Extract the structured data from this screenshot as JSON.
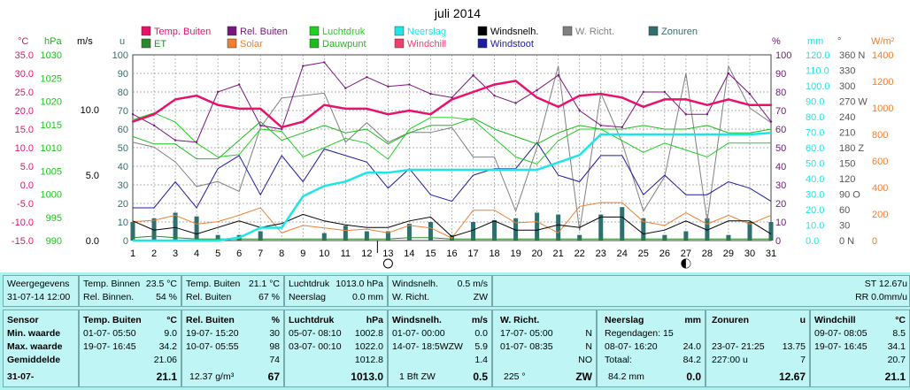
{
  "title": "juli 2014",
  "axis_units": {
    "temp": "°C",
    "press": "hPa",
    "wind": "m/s",
    "u": "u",
    "pct": "%",
    "mm": "mm",
    "deg": "°",
    "wm2": "W/m²"
  },
  "legend": [
    {
      "label": "Temp. Buiten",
      "color": "#e8116b"
    },
    {
      "label": "Rel. Buiten",
      "color": "#7a1580"
    },
    {
      "label": "Luchtdruk",
      "color": "#22d022"
    },
    {
      "label": "Neerslag",
      "color": "#1ee6e6"
    },
    {
      "label": "Windsnelh.",
      "color": "#000000"
    },
    {
      "label": "W. Richt.",
      "color": "#808080"
    },
    {
      "label": "Zonuren",
      "color": "#2f6f6f"
    },
    {
      "label": "ET",
      "color": "#2a8a2a"
    },
    {
      "label": "Solar",
      "color": "#ee8030"
    },
    {
      "label": "Dauwpunt",
      "color": "#1bbd1b"
    },
    {
      "label": "Windchill",
      "color": "#ef3f6c"
    },
    {
      "label": "Windstoot",
      "color": "#1c1ca0"
    }
  ],
  "axes": {
    "temp_ticks": [
      "35.0",
      "30.0",
      "25.0",
      "20.0",
      "15.0",
      "10.0",
      "5.0",
      "0.0",
      "-5.0",
      "-10.0",
      "-15.0"
    ],
    "press_ticks": [
      "1030",
      "1025",
      "1020",
      "1015",
      "1010",
      "1005",
      "1000",
      "995",
      "990"
    ],
    "wind_ticks": [
      "10.0",
      "5.0",
      "0.0"
    ],
    "u_ticks": [
      "100",
      "90",
      "80",
      "70",
      "60",
      "50",
      "40",
      "30",
      "20",
      "10",
      "0"
    ],
    "pct_ticks": [
      "100",
      "90",
      "80",
      "70",
      "60",
      "50",
      "40",
      "30",
      "20",
      "10",
      "0"
    ],
    "mm_ticks": [
      "120.0",
      "110.0",
      "100.0",
      "90.0",
      "80.0",
      "70.0",
      "60.0",
      "50.0",
      "40.0",
      "30.0",
      "20.0",
      "10.0",
      "0.0"
    ],
    "deg_ticks": [
      "360 N",
      "330",
      "300",
      "270 W",
      "240",
      "210",
      "180 Z",
      "150",
      "120",
      "90 O",
      "60",
      "30",
      "0 N"
    ],
    "wm2_ticks": [
      "1400",
      "1200",
      "1000",
      "800",
      "600",
      "400",
      "200",
      "0"
    ],
    "x_ticks": [
      "1",
      "2",
      "3",
      "4",
      "5",
      "6",
      "7",
      "8",
      "9",
      "10",
      "11",
      "12",
      "13",
      "14",
      "15",
      "16",
      "17",
      "18",
      "19",
      "20",
      "21",
      "22",
      "23",
      "24",
      "25",
      "26",
      "27",
      "28",
      "29",
      "30",
      "31"
    ]
  },
  "chart_data": {
    "type": "line",
    "title": "juli 2014",
    "x": [
      1,
      2,
      3,
      4,
      5,
      6,
      7,
      8,
      9,
      10,
      11,
      12,
      13,
      14,
      15,
      16,
      17,
      18,
      19,
      20,
      21,
      22,
      23,
      24,
      25,
      26,
      27,
      28,
      29,
      30,
      31
    ],
    "series": [
      {
        "name": "Temp. Buiten",
        "unit": "°C",
        "values": [
          17,
          19,
          23,
          24,
          21.5,
          20.5,
          20.5,
          15.5,
          17,
          21.5,
          20.5,
          20.5,
          19,
          20,
          19,
          23,
          25,
          27,
          28,
          23.5,
          21,
          24,
          24.5,
          23.5,
          21,
          23,
          23,
          21.5,
          23,
          21.5,
          21.5
        ]
      },
      {
        "name": "Rel. Buiten",
        "unit": "%",
        "values": [
          68,
          62,
          54,
          53,
          80,
          84,
          62,
          60,
          94,
          96,
          82,
          88,
          83,
          84,
          79,
          77,
          89,
          78,
          74,
          81,
          89,
          70,
          62,
          61,
          80,
          80,
          68,
          68,
          90,
          79,
          64
        ]
      },
      {
        "name": "Luchtdruk",
        "unit": "hPa",
        "values": [
          1016,
          1017.5,
          1015.5,
          1011,
          1008,
          1008.5,
          1014,
          1013.5,
          1008,
          1010,
          1012,
          1011,
          1007.5,
          1014,
          1016.5,
          1016.5,
          1016,
          1012,
          1008,
          1006.5,
          1011.5,
          1014,
          1014,
          1011.5,
          1009,
          1011,
          1009.5,
          1008,
          1011,
          1011,
          1011
        ]
      },
      {
        "name": "Neerslag",
        "unit": "mm",
        "values": [
          0,
          0,
          0,
          0,
          0,
          2,
          8.7,
          8.7,
          30,
          37,
          40,
          46,
          46,
          48,
          48,
          48,
          48,
          48,
          48,
          48,
          53,
          58,
          72,
          72,
          72,
          72,
          72,
          72,
          72,
          72,
          73
        ]
      },
      {
        "name": "Windsnelh.",
        "unit": "m/s",
        "values": [
          1.5,
          0.8,
          1.0,
          0.5,
          1.0,
          1.5,
          1.0,
          1.3,
          2.0,
          1.5,
          1.2,
          1.0,
          1.0,
          1.5,
          1.8,
          0.3,
          0.8,
          1.5,
          0.8,
          0.8,
          1.2,
          1.0,
          1.8,
          1.8,
          0.5,
          0.8,
          1.5,
          0.8,
          1.5,
          1.5,
          0.5
        ]
      },
      {
        "name": "W. Richt.",
        "unit": "°",
        "values": [
          200,
          190,
          160,
          110,
          120,
          100,
          230,
          290,
          295,
          300,
          200,
          240,
          200,
          220,
          220,
          230,
          170,
          170,
          60,
          190,
          355,
          20,
          300,
          200,
          60,
          130,
          340,
          40,
          355,
          270,
          240
        ]
      },
      {
        "name": "Zonuren",
        "unit": "u",
        "values": [
          10,
          12,
          15,
          13,
          3,
          3,
          5,
          0,
          0,
          4,
          8,
          5,
          5,
          9,
          10,
          3,
          10,
          11,
          12,
          15,
          14,
          3,
          14,
          18,
          12,
          3,
          5,
          12,
          3,
          10,
          10
        ]
      },
      {
        "name": "ET",
        "unit": "mm",
        "values": [
          2,
          3,
          2,
          1,
          1,
          1,
          1,
          1,
          1,
          1,
          1,
          1,
          1,
          2,
          2,
          1,
          1,
          1,
          1,
          1,
          1,
          1,
          1,
          1,
          1,
          1,
          1,
          1,
          1,
          1,
          1
        ]
      },
      {
        "name": "Solar",
        "unit": "W/m²",
        "values": [
          150,
          160,
          200,
          130,
          150,
          200,
          260,
          60,
          120,
          100,
          80,
          90,
          60,
          120,
          100,
          20,
          240,
          240,
          140,
          150,
          60,
          270,
          300,
          300,
          150,
          120,
          220,
          130,
          200,
          130,
          200
        ]
      },
      {
        "name": "Dauwpunt",
        "unit": "°C",
        "values": [
          13,
          11,
          11,
          7,
          7,
          12,
          17,
          12,
          14,
          16,
          14,
          15,
          11,
          14,
          16,
          16,
          18,
          15,
          13,
          11,
          14,
          16,
          15,
          15,
          16,
          15,
          15,
          16,
          14,
          14,
          15
        ]
      },
      {
        "name": "Windchill",
        "unit": "°C",
        "values": [
          17,
          19,
          23,
          24,
          21.5,
          20.5,
          20.5,
          15.5,
          17,
          21.5,
          20.5,
          20.5,
          19,
          20,
          19,
          23,
          25,
          27,
          28,
          23.5,
          21,
          24,
          24.5,
          23.5,
          21,
          23,
          23,
          21.5,
          23,
          21.5,
          21.5
        ]
      },
      {
        "name": "Windstoot",
        "unit": "m/s",
        "values": [
          2.5,
          2.5,
          4.5,
          2.5,
          5.5,
          6.5,
          3.5,
          6.5,
          4.5,
          7,
          6.5,
          6,
          4,
          5.5,
          3.5,
          3,
          5,
          5.5,
          5.5,
          7.5,
          5,
          4.5,
          6.5,
          6.5,
          3.5,
          5,
          3.5,
          3.5,
          4.5,
          4,
          3
        ]
      }
    ],
    "moon_phases": [
      {
        "day": 13,
        "phase": "full"
      },
      {
        "day": 27,
        "phase": "new"
      }
    ]
  },
  "panel": {
    "weergegevens": {
      "title": "Weergegevens",
      "date": "31-07-14 12:00"
    },
    "binnen": {
      "temp_label": "Temp. Binnen",
      "temp_val": "23.5 °C",
      "rel_label": "Rel. Binnen.",
      "rel_val": "54 %"
    },
    "buiten": {
      "temp_label": "Temp. Buiten",
      "temp_val": "21.1 °C",
      "rel_label": "Rel. Buiten",
      "rel_val": "67 %"
    },
    "druk": {
      "label": "Luchtdruk",
      "val": "1013.0 hPa",
      "neer_label": "Neerslag",
      "neer_val": "0.0 mm"
    },
    "wind": {
      "label": "Windsnelh.",
      "val": "0.5 m/s",
      "dir_label": "W. Richt.",
      "dir_val": "ZW"
    },
    "st": "ST 12.67u",
    "rr": "RR 0.0mm/u",
    "table": {
      "row_labels": [
        "Sensor",
        "Min. waarde",
        "Max. waarde",
        "Gemiddelde",
        "31-07-"
      ],
      "temp": {
        "head": "Temp. Buiten",
        "unit": "°C",
        "min_t": "01-07-  05:50",
        "min_v": "9.0",
        "max_t": "19-07-  16:45",
        "max_v": "34.2",
        "avg": "21.06",
        "cur": "21.1"
      },
      "rel": {
        "head": "Rel. Buiten",
        "unit": "%",
        "min_t": "19-07-  15:20",
        "min_v": "30",
        "max_t": "10-07-  05:55",
        "max_v": "98",
        "avg": "74",
        "extra": "12.37 g/m³",
        "cur": "67"
      },
      "druk": {
        "head": "Luchtdruk",
        "unit": "hPa",
        "min_t": "05-07-  08:10",
        "min_v": "1002.8",
        "max_t": "03-07-  00:10",
        "max_v": "1022.0",
        "avg": "1012.8",
        "cur": "1013.0"
      },
      "wind": {
        "head": "Windsnelh.",
        "unit": "m/s",
        "min_t": "01-07-  00:00",
        "min_v": "0.0",
        "max_t": "14-07-  18:5WZW",
        "max_v": "5.9",
        "avg": "1.4",
        "extra": "1 Bft ZW",
        "cur": "0.5"
      },
      "richt": {
        "head": "W. Richt.",
        "min_t": "17-07-  05:00",
        "min_v": "N",
        "max_t": "01-07-  08:35",
        "max_v": "N",
        "avg": "NO",
        "extra": "225 °",
        "cur": "ZW"
      },
      "neer": {
        "head": "Neerslag",
        "unit": "mm",
        "r1": "Regendagen: 15",
        "min_t": "08-07-  16:20",
        "min_v": "24.0",
        "tot_l": "Totaal:",
        "tot_v": "84.2",
        "extra": "84.2 mm",
        "cur": "0.0"
      },
      "zon": {
        "head": "Zonuren",
        "unit": "u",
        "min_t": "23-07-  21:25",
        "min_v": "13.75",
        "max_t": "227:00 u",
        "max_v": "7",
        "cur": "12.67"
      },
      "chill": {
        "head": "Windchill",
        "unit": "°C",
        "min_t": "09-07-  08:05",
        "min_v": "8.5",
        "max_t": "19-07-  16:45",
        "max_v": "34.1",
        "avg": "20.7",
        "cur": "21.1"
      }
    }
  }
}
